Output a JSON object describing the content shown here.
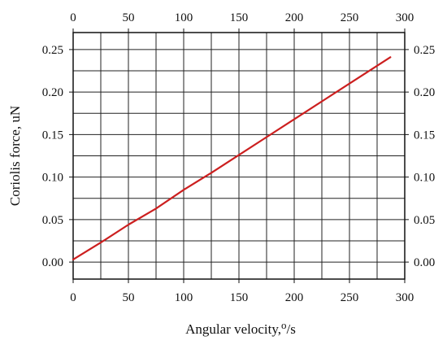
{
  "chart_data": {
    "type": "line",
    "title": "",
    "xlabel": "Angular velocity,",
    "xlabel_unit_sup": "o",
    "xlabel_unit_tail": "/s",
    "ylabel": "Coriolis force, uN",
    "xlim": [
      0,
      300
    ],
    "ylim": [
      -0.02,
      0.27
    ],
    "x_ticks": [
      0,
      50,
      100,
      150,
      200,
      250,
      300
    ],
    "x_tick_labels": [
      "0",
      "50",
      "100",
      "150",
      "200",
      "250",
      "300"
    ],
    "y_ticks": [
      0.0,
      0.05,
      0.1,
      0.15,
      0.2,
      0.25
    ],
    "y_tick_labels": [
      "0.00",
      "0.05",
      "0.10",
      "0.15",
      "0.20",
      "0.25"
    ],
    "x_minor_step": 25,
    "y_minor_step": 0.025,
    "grid": true,
    "series": [
      {
        "color": "#cc1f1f",
        "x": [
          0,
          25,
          50,
          75,
          100,
          125,
          150,
          175,
          200,
          225,
          250,
          287
        ],
        "y": [
          0.003,
          0.023,
          0.044,
          0.063,
          0.085,
          0.105,
          0.126,
          0.147,
          0.168,
          0.189,
          0.21,
          0.241
        ]
      }
    ]
  }
}
